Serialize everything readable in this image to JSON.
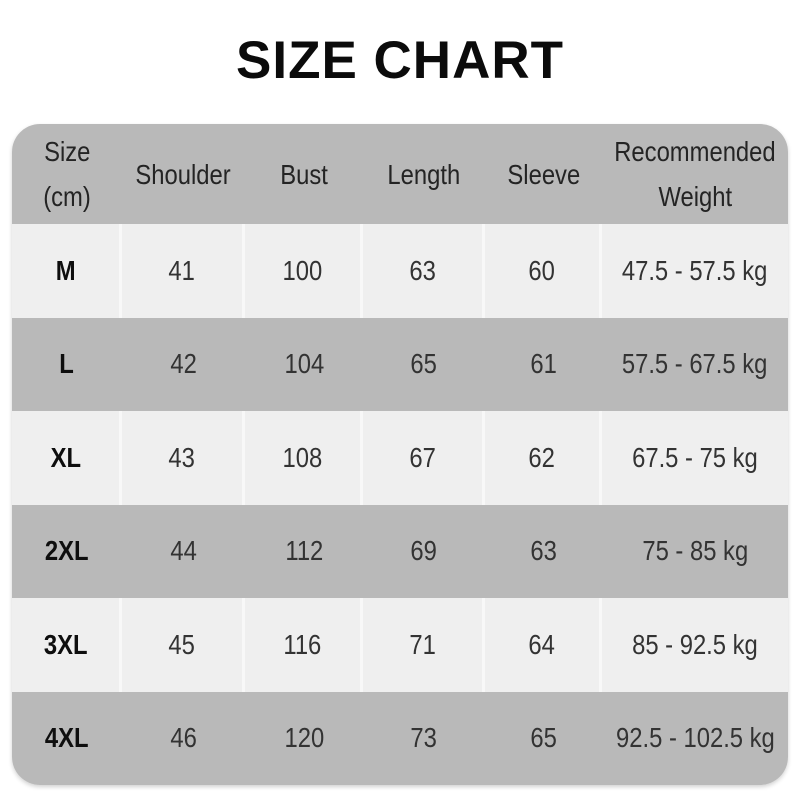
{
  "page": {
    "title": "SIZE CHART"
  },
  "colors": {
    "header_bg": "#b9b9b9",
    "row_dark_bg": "#b9b9b9",
    "row_light_bg": "#efefef",
    "divider": "#f8f8f8",
    "title_text": "#0b0b0b",
    "cell_text": "#333333"
  },
  "table": {
    "header": {
      "size_line1": "Size",
      "size_line2": "(cm)",
      "shoulder": "Shoulder",
      "bust": "Bust",
      "length": "Length",
      "sleeve": "Sleeve",
      "weight_line1": "Recommended",
      "weight_line2": "Weight"
    },
    "rows": [
      {
        "size": "M",
        "shoulder": "41",
        "bust": "100",
        "length": "63",
        "sleeve": "60",
        "weight": "47.5 - 57.5 kg"
      },
      {
        "size": "L",
        "shoulder": "42",
        "bust": "104",
        "length": "65",
        "sleeve": "61",
        "weight": "57.5 - 67.5 kg"
      },
      {
        "size": "XL",
        "shoulder": "43",
        "bust": "108",
        "length": "67",
        "sleeve": "62",
        "weight": "67.5 - 75 kg"
      },
      {
        "size": "2XL",
        "shoulder": "44",
        "bust": "112",
        "length": "69",
        "sleeve": "63",
        "weight": "75 - 85 kg"
      },
      {
        "size": "3XL",
        "shoulder": "45",
        "bust": "116",
        "length": "71",
        "sleeve": "64",
        "weight": "85 - 92.5 kg"
      },
      {
        "size": "4XL",
        "shoulder": "46",
        "bust": "120",
        "length": "73",
        "sleeve": "65",
        "weight": "92.5 - 102.5 kg"
      }
    ]
  },
  "chart_data": {
    "type": "table",
    "title": "SIZE CHART",
    "columns": [
      "Size (cm)",
      "Shoulder",
      "Bust",
      "Length",
      "Sleeve",
      "Recommended Weight"
    ],
    "rows": [
      [
        "M",
        41,
        100,
        63,
        60,
        "47.5 - 57.5 kg"
      ],
      [
        "L",
        42,
        104,
        65,
        61,
        "57.5 - 67.5 kg"
      ],
      [
        "XL",
        43,
        108,
        67,
        62,
        "67.5 - 75 kg"
      ],
      [
        "2XL",
        44,
        112,
        69,
        63,
        "75 - 85 kg"
      ],
      [
        "3XL",
        45,
        116,
        71,
        64,
        "85 - 92.5 kg"
      ],
      [
        "4XL",
        46,
        120,
        73,
        65,
        "92.5 - 102.5 kg"
      ]
    ],
    "layout": {
      "zebra_striping": true,
      "rounded_corners": true,
      "grid": "vertical dividers on light rows only"
    }
  }
}
